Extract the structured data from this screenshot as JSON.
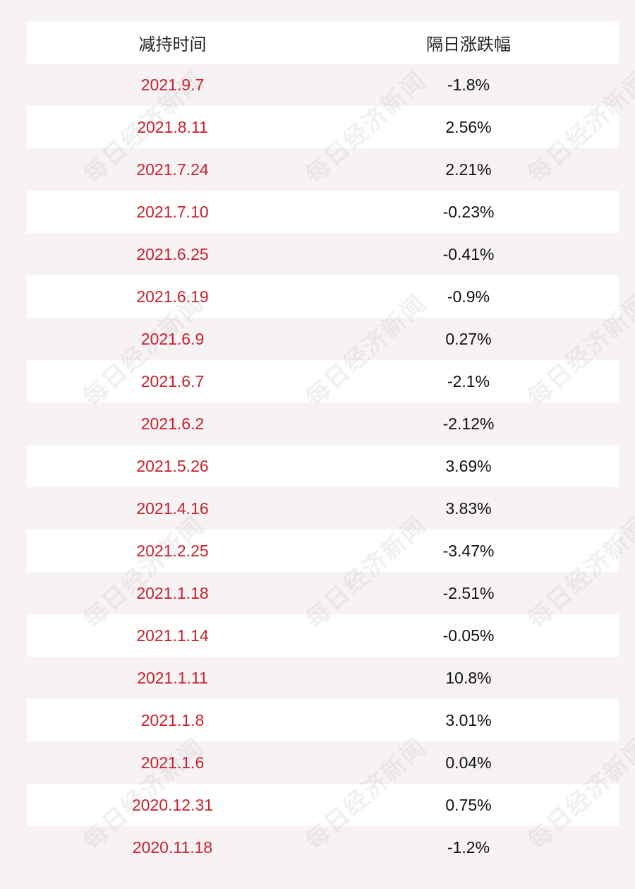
{
  "header": {
    "date_label": "减持时间",
    "change_label": "隔日涨跌幅"
  },
  "rows": [
    {
      "date": "2021.9.7",
      "change": "-1.8%"
    },
    {
      "date": "2021.8.11",
      "change": "2.56%"
    },
    {
      "date": "2021.7.24",
      "change": "2.21%"
    },
    {
      "date": "2021.7.10",
      "change": "-0.23%"
    },
    {
      "date": "2021.6.25",
      "change": "-0.41%"
    },
    {
      "date": "2021.6.19",
      "change": "-0.9%"
    },
    {
      "date": "2021.6.9",
      "change": "0.27%"
    },
    {
      "date": "2021.6.7",
      "change": "-2.1%"
    },
    {
      "date": "2021.6.2",
      "change": "-2.12%"
    },
    {
      "date": "2021.5.26",
      "change": "3.69%"
    },
    {
      "date": "2021.4.16",
      "change": "3.83%"
    },
    {
      "date": "2021.2.25",
      "change": "-3.47%"
    },
    {
      "date": "2021.1.18",
      "change": "-2.51%"
    },
    {
      "date": "2021.1.14",
      "change": "-0.05%"
    },
    {
      "date": "2021.1.11",
      "change": "10.8%"
    },
    {
      "date": "2021.1.8",
      "change": "3.01%"
    },
    {
      "date": "2021.1.6",
      "change": "0.04%"
    },
    {
      "date": "2020.12.31",
      "change": "0.75%"
    },
    {
      "date": "2020.11.18",
      "change": "-1.2%"
    }
  ],
  "watermark": {
    "text": "每日经济新闻"
  },
  "colors": {
    "date_text": "#c8202b",
    "change_text": "#111111",
    "stripe": "#f7f3f4",
    "row_bg": "#ffffff"
  }
}
